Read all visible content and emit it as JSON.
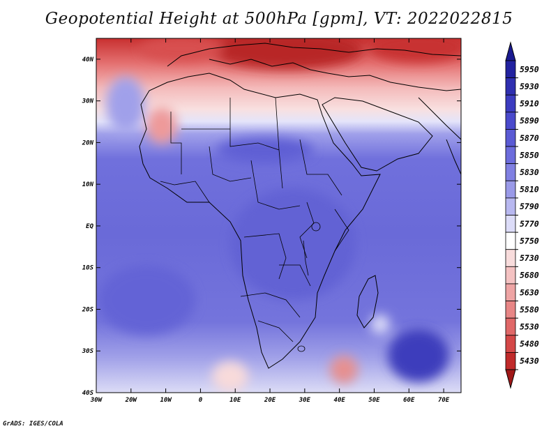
{
  "map": {
    "title": "Geopotential Height at 500hPa [gpm], VT: 2022022815",
    "credit": "GrADS: IGES/COLA",
    "lat_labels": [
      "40N",
      "30N",
      "20N",
      "10N",
      "EQ",
      "10S",
      "20S",
      "30S",
      "40S"
    ],
    "lon_labels": [
      "30W",
      "20W",
      "10W",
      "0",
      "10E",
      "20E",
      "30E",
      "40E",
      "50E",
      "60E",
      "70E"
    ]
  },
  "colorbar": {
    "labels": [
      "5950",
      "5930",
      "5910",
      "5890",
      "5870",
      "5850",
      "5830",
      "5810",
      "5790",
      "5770",
      "5750",
      "5730",
      "5680",
      "5630",
      "5580",
      "5530",
      "5480",
      "5430"
    ],
    "colors": [
      "#2222a0",
      "#2f2fb0",
      "#3c3cc0",
      "#4a4acc",
      "#5a5ad4",
      "#6c6cdc",
      "#8080e2",
      "#9a9ae8",
      "#b8b8f0",
      "#dcdcf8",
      "#ffffff",
      "#f8dcdc",
      "#f4c2c2",
      "#eea4a4",
      "#e88686",
      "#e06868",
      "#d44848",
      "#c02a2a"
    ],
    "top_cap": "#1a1a90",
    "bottom_cap": "#a01818"
  }
}
